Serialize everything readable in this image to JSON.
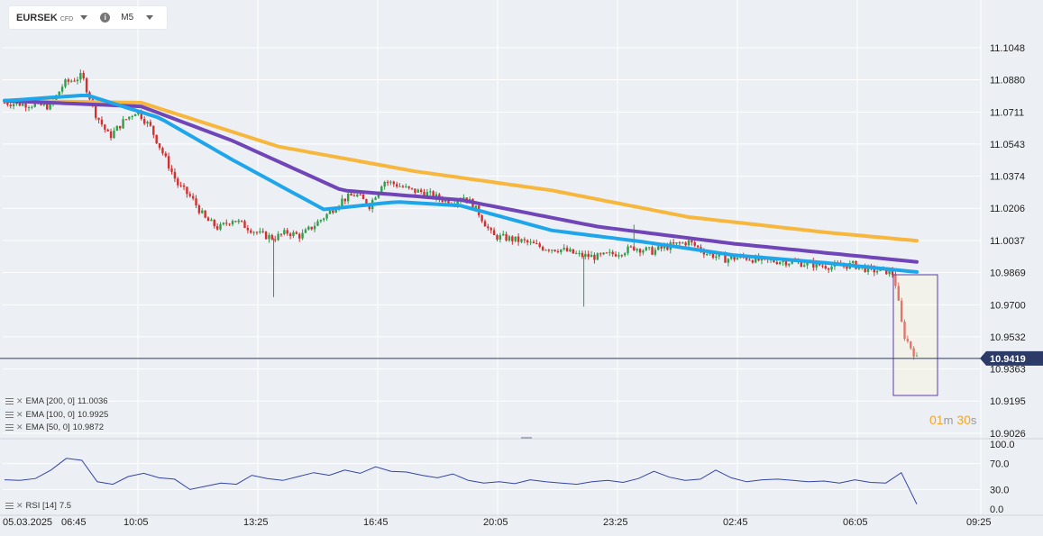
{
  "toolbar": {
    "symbol": "EURSEK",
    "instrument_type": "CFD",
    "info_icon": "info-icon",
    "timeframe": "M5"
  },
  "price_axis": {
    "labels": [
      "11.1048",
      "11.0880",
      "11.0711",
      "11.0543",
      "11.0374",
      "11.0206",
      "11.0037",
      "10.9869",
      "10.9700",
      "10.9532",
      "10.9363",
      "10.9195",
      "10.9026"
    ]
  },
  "current_price": "10.9419",
  "time_axis": {
    "labels": [
      "05.03.2025",
      "06:45",
      "10:05",
      "13:25",
      "16:45",
      "20:05",
      "23:25",
      "02:45",
      "06:05",
      "09:25"
    ]
  },
  "indicators": [
    {
      "label": "EMA [200, 0]",
      "value": "11.0036",
      "color": "#f6b73c"
    },
    {
      "label": "EMA [100, 0]",
      "value": "10.9925",
      "color": "#6f45b8"
    },
    {
      "label": "EMA [50, 0]",
      "value": "10.9872",
      "color": "#1fa6ea"
    }
  ],
  "rsi": {
    "label": "RSI [14]",
    "value": "7.5",
    "levels": [
      "100.0",
      "70.0",
      "30.0",
      "0.0"
    ],
    "color": "#3344aa"
  },
  "countdown": {
    "minutes": "01",
    "m": "m",
    "seconds": "30",
    "s": "s"
  },
  "chart_data": {
    "type": "candlestick",
    "ylim": [
      10.9026,
      11.1048
    ],
    "up_color": "#2e9e4a",
    "down_color": "#d32f2f",
    "x": [
      "05.03.2025 06:45",
      "10:05",
      "13:25",
      "16:45",
      "20:05",
      "23:25",
      "02:45",
      "06:05",
      "09:25"
    ],
    "close_path": [
      [
        0,
        11.076
      ],
      [
        0.03,
        11.075
      ],
      [
        0.05,
        11.074
      ],
      [
        0.065,
        11.086
      ],
      [
        0.085,
        11.09
      ],
      [
        0.1,
        11.07
      ],
      [
        0.115,
        11.058
      ],
      [
        0.13,
        11.066
      ],
      [
        0.145,
        11.072
      ],
      [
        0.16,
        11.063
      ],
      [
        0.175,
        11.048
      ],
      [
        0.19,
        11.033
      ],
      [
        0.205,
        11.026
      ],
      [
        0.22,
        11.015
      ],
      [
        0.235,
        11.01
      ],
      [
        0.25,
        11.015
      ],
      [
        0.265,
        11.011
      ],
      [
        0.28,
        11.007
      ],
      [
        0.295,
        11.005
      ],
      [
        0.31,
        11.008
      ],
      [
        0.325,
        11.006
      ],
      [
        0.34,
        11.012
      ],
      [
        0.355,
        11.018
      ],
      [
        0.37,
        11.025
      ],
      [
        0.385,
        11.028
      ],
      [
        0.4,
        11.022
      ],
      [
        0.415,
        11.035
      ],
      [
        0.43,
        11.033
      ],
      [
        0.445,
        11.03
      ],
      [
        0.46,
        11.029
      ],
      [
        0.475,
        11.026
      ],
      [
        0.49,
        11.024
      ],
      [
        0.505,
        11.027
      ],
      [
        0.52,
        11.018
      ],
      [
        0.535,
        11.006
      ],
      [
        0.55,
        11.005
      ],
      [
        0.57,
        11.003
      ],
      [
        0.59,
        11.0
      ],
      [
        0.61,
        10.999
      ],
      [
        0.63,
        10.996
      ],
      [
        0.65,
        10.995
      ],
      [
        0.67,
        10.997
      ],
      [
        0.69,
        11.0
      ],
      [
        0.71,
        10.998
      ],
      [
        0.73,
        11.001
      ],
      [
        0.75,
        11.003
      ],
      [
        0.77,
        10.997
      ],
      [
        0.79,
        10.994
      ],
      [
        0.81,
        10.995
      ],
      [
        0.83,
        10.993
      ],
      [
        0.85,
        10.993
      ],
      [
        0.87,
        10.992
      ],
      [
        0.89,
        10.991
      ],
      [
        0.91,
        10.99
      ],
      [
        0.93,
        10.991
      ],
      [
        0.95,
        10.988
      ],
      [
        0.965,
        10.988
      ],
      [
        0.975,
        10.986
      ],
      [
        0.985,
        10.955
      ],
      [
        1.0,
        10.9419
      ]
    ],
    "ema200": [
      [
        0,
        11.077
      ],
      [
        0.15,
        11.076
      ],
      [
        0.3,
        11.053
      ],
      [
        0.45,
        11.04
      ],
      [
        0.6,
        11.03
      ],
      [
        0.75,
        11.016
      ],
      [
        0.9,
        11.008
      ],
      [
        1.0,
        11.0036
      ]
    ],
    "ema100": [
      [
        0,
        11.077
      ],
      [
        0.15,
        11.074
      ],
      [
        0.25,
        11.056
      ],
      [
        0.37,
        11.03
      ],
      [
        0.5,
        11.025
      ],
      [
        0.65,
        11.011
      ],
      [
        0.8,
        11.002
      ],
      [
        1.0,
        10.9925
      ]
    ],
    "ema50": [
      [
        0,
        11.077
      ],
      [
        0.09,
        11.08
      ],
      [
        0.17,
        11.068
      ],
      [
        0.25,
        11.046
      ],
      [
        0.35,
        11.02
      ],
      [
        0.43,
        11.024
      ],
      [
        0.5,
        11.022
      ],
      [
        0.6,
        11.009
      ],
      [
        0.7,
        11.003
      ],
      [
        0.8,
        10.996
      ],
      [
        0.9,
        10.992
      ],
      [
        1.0,
        10.9872
      ]
    ],
    "rsi_values": [
      45,
      44,
      47,
      60,
      78,
      75,
      42,
      38,
      50,
      55,
      48,
      46,
      30,
      35,
      40,
      38,
      52,
      47,
      44,
      50,
      56,
      52,
      60,
      55,
      65,
      58,
      57,
      52,
      48,
      54,
      44,
      40,
      42,
      39,
      45,
      42,
      40,
      38,
      42,
      44,
      41,
      47,
      58,
      49,
      44,
      46,
      60,
      48,
      42,
      45,
      46,
      44,
      42,
      43,
      40,
      45,
      41,
      40,
      56,
      7.5
    ]
  }
}
